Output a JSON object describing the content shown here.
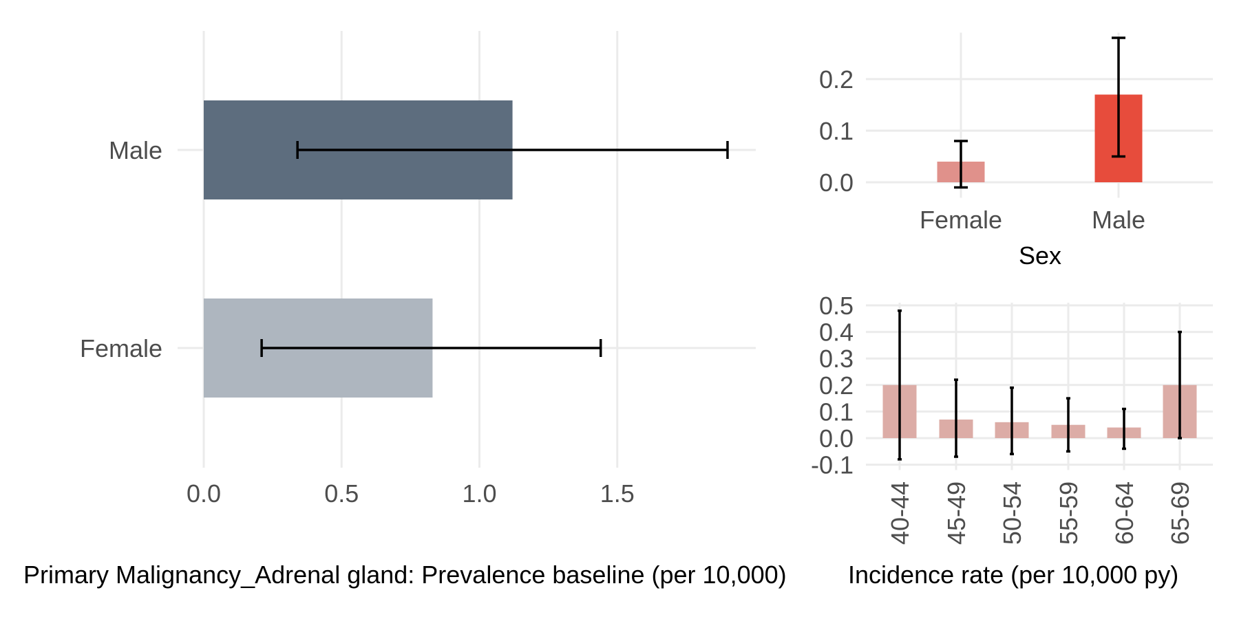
{
  "colors": {
    "grid": "#ebebeb",
    "tick_text": "#4d4d4d",
    "error_bar": "#000000"
  },
  "chart_data": [
    {
      "id": "prevalence",
      "type": "bar",
      "orientation": "horizontal",
      "categories": [
        "Male",
        "Female"
      ],
      "values": [
        1.12,
        0.83
      ],
      "lower": [
        0.34,
        0.21
      ],
      "upper": [
        1.9,
        1.44
      ],
      "bar_colors": [
        "#5d6d7e",
        "#aeb6bf"
      ],
      "xlim": [
        -0.05,
        2.0
      ],
      "xticks": [
        0.0,
        0.5,
        1.0,
        1.5
      ],
      "xtick_labels": [
        "0.0",
        "0.5",
        "1.0",
        "1.5"
      ],
      "xlabel": "Primary Malignancy_Adrenal gland: Prevalence baseline (per 10,000)",
      "ylabel": "",
      "grid": true
    },
    {
      "id": "incidence_sex",
      "type": "bar",
      "categories": [
        "Female",
        "Male"
      ],
      "values": [
        0.04,
        0.17
      ],
      "lower": [
        -0.01,
        0.05
      ],
      "upper": [
        0.08,
        0.28
      ],
      "bar_colors": [
        "#e0918b",
        "#e74c3c"
      ],
      "ylim": [
        -0.03,
        0.29
      ],
      "yticks": [
        0.0,
        0.1,
        0.2
      ],
      "ytick_labels": [
        "0.0",
        "0.1",
        "0.2"
      ],
      "xlabel": "Sex",
      "ylabel": "",
      "grid": true
    },
    {
      "id": "incidence_age",
      "type": "bar",
      "categories": [
        "40-44",
        "45-49",
        "50-54",
        "55-59",
        "60-64",
        "65-69"
      ],
      "values": [
        0.2,
        0.07,
        0.06,
        0.05,
        0.04,
        0.2
      ],
      "lower": [
        -0.08,
        -0.07,
        -0.06,
        -0.05,
        -0.04,
        0.0
      ],
      "upper": [
        0.48,
        0.22,
        0.19,
        0.15,
        0.11,
        0.4
      ],
      "bar_color": "#dcaca6",
      "ylim": [
        -0.12,
        0.51
      ],
      "yticks": [
        -0.1,
        0.0,
        0.1,
        0.2,
        0.3,
        0.4,
        0.5
      ],
      "ytick_labels": [
        "-0.1",
        "0.0",
        "0.1",
        "0.2",
        "0.3",
        "0.4",
        "0.5"
      ],
      "xlabel": "Incidence rate (per 10,000 py)",
      "ylabel": "",
      "grid": true
    }
  ]
}
